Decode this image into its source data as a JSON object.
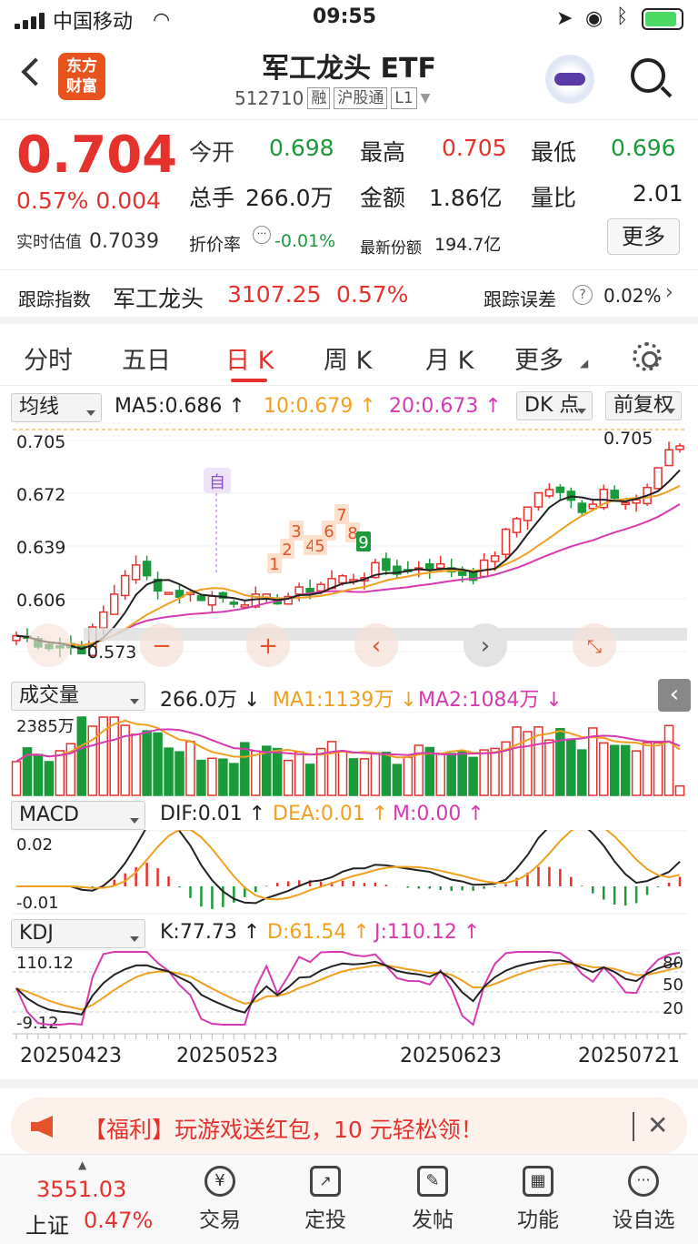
{
  "status": {
    "carrier": "中国移动",
    "time": "09:55"
  },
  "header": {
    "title": "军工龙头 ETF",
    "code": "512710",
    "tags": [
      "融",
      "沪股通",
      "L1"
    ],
    "logo_text": "东方财富"
  },
  "quote": {
    "price": "0.704",
    "change_pct": "0.57%",
    "change": "0.004",
    "est_label": "实时估值",
    "est_value": "0.7039",
    "open_label": "今开",
    "open": "0.698",
    "high_label": "最高",
    "high": "0.705",
    "low_label": "最低",
    "low": "0.696",
    "vol_label": "总手",
    "vol": "266.0万",
    "amt_label": "金额",
    "amt": "1.86亿",
    "ratio_label": "量比",
    "ratio": "2.01",
    "premium_label": "折价率",
    "premium": "-0.01%",
    "shares_label": "最新份额",
    "shares": "194.7亿",
    "more": "更多"
  },
  "tracking": {
    "label": "跟踪指数",
    "name": "军工龙头",
    "value": "3107.25",
    "pct": "0.57%",
    "err_label": "跟踪误差",
    "err": "0.02%"
  },
  "tabs": [
    "分时",
    "五日",
    "日 K",
    "周 K",
    "月 K",
    "更多"
  ],
  "kline": {
    "selector": "均线",
    "ma5": "MA5:0.686 ↑",
    "ma10": "10:0.679 ↑",
    "ma20": "20:0.673 ↑",
    "dk": "DK 点",
    "fq": "前复权",
    "y_labels": [
      "0.705",
      "0.672",
      "0.639",
      "0.606",
      "0.573"
    ],
    "last_mark": "0.705",
    "min_mark": "0.573",
    "event_mark": "自",
    "seq_marks": [
      "1",
      "2",
      "3",
      "4",
      "5",
      "6",
      "7",
      "8",
      "9"
    ]
  },
  "volume": {
    "selector": "成交量",
    "v": "266.0万 ↓",
    "ma1": "MA1:1139万 ↓",
    "ma2": "MA2:1084万 ↓",
    "max": "2385万"
  },
  "macd": {
    "selector": "MACD",
    "dif": "DIF:0.01 ↑",
    "dea": "DEA:0.01 ↑",
    "m": "M:0.00 ↑",
    "top": "0.02",
    "bottom": "-0.01"
  },
  "kdj": {
    "selector": "KDJ",
    "k": "K:77.73 ↑",
    "d": "D:61.54 ↑",
    "j": "J:110.12 ↑",
    "top": "110.12",
    "bottom": "-9.12",
    "levels": [
      "80",
      "50",
      "20"
    ]
  },
  "dates": [
    "20250423",
    "20250523",
    "20250623",
    "20250721"
  ],
  "banner": {
    "text": "【福利】玩游戏送红包，10 元轻松领！"
  },
  "bottom": {
    "index_value": "3551.03",
    "index_name": "上证",
    "index_pct": "0.47%",
    "items": [
      "交易",
      "定投",
      "发帖",
      "功能",
      "设自选"
    ]
  },
  "colors": {
    "up": "#e5322d",
    "down": "#1a9a3a",
    "ma5": "#222222",
    "ma10": "#f0a020",
    "ma20": "#d63ab0"
  }
}
